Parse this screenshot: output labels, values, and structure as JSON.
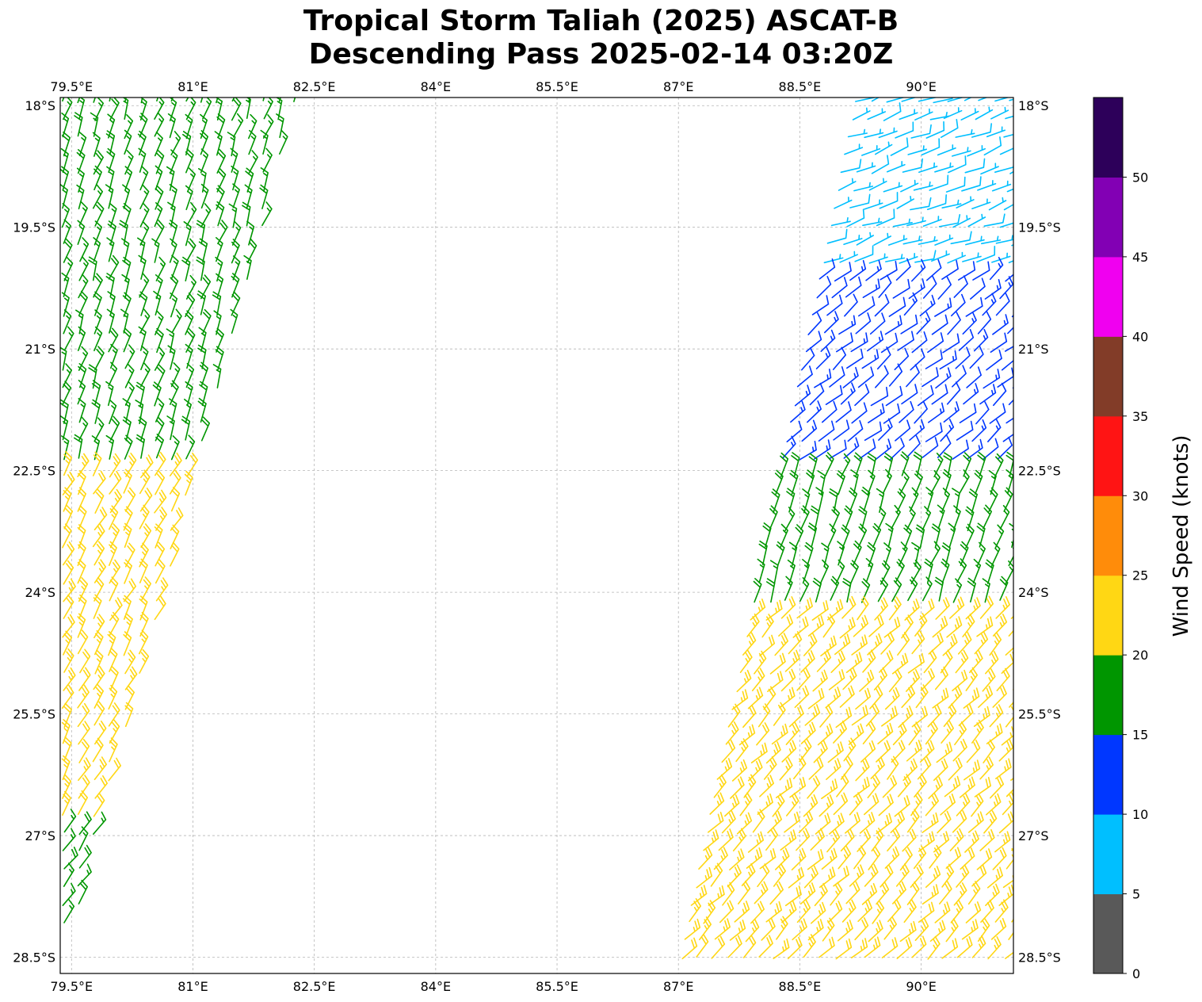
{
  "title_line1": "Tropical Storm Taliah (2025) ASCAT-B",
  "title_line2": "Descending Pass 2025-02-14 03:20Z",
  "map": {
    "lon_range": [
      79.36,
      91.14
    ],
    "lat_range": [
      -28.7,
      -17.9
    ],
    "lon_ticks": [
      {
        "value": 79.5,
        "label": "79.5°E"
      },
      {
        "value": 81.0,
        "label": "81°E"
      },
      {
        "value": 82.5,
        "label": "82.5°E"
      },
      {
        "value": 84.0,
        "label": "84°E"
      },
      {
        "value": 85.5,
        "label": "85.5°E"
      },
      {
        "value": 87.0,
        "label": "87°E"
      },
      {
        "value": 88.5,
        "label": "88.5°E"
      },
      {
        "value": 90.0,
        "label": "90°E"
      }
    ],
    "lat_ticks": [
      {
        "value": -18.0,
        "label": "18°S"
      },
      {
        "value": -19.5,
        "label": "19.5°S"
      },
      {
        "value": -21.0,
        "label": "21°S"
      },
      {
        "value": -22.5,
        "label": "22.5°S"
      },
      {
        "value": -24.0,
        "label": "24°S"
      },
      {
        "value": -25.5,
        "label": "25.5°S"
      },
      {
        "value": -27.0,
        "label": "27°S"
      },
      {
        "value": -28.5,
        "label": "28.5°S"
      }
    ],
    "grid": true,
    "barb_convention": "wind barbs, knots, southern hemisphere"
  },
  "colorbar": {
    "label": "Wind Speed (knots)",
    "ticks": [
      "0",
      "5",
      "10",
      "15",
      "20",
      "25",
      "30",
      "35",
      "40",
      "45",
      "50"
    ],
    "bins": [
      {
        "from": 0,
        "to": 5,
        "color": "#595959"
      },
      {
        "from": 5,
        "to": 10,
        "color": "#00bfff"
      },
      {
        "from": 10,
        "to": 15,
        "color": "#0037ff"
      },
      {
        "from": 15,
        "to": 20,
        "color": "#009600"
      },
      {
        "from": 20,
        "to": 25,
        "color": "#ffd714"
      },
      {
        "from": 25,
        "to": 30,
        "color": "#ff8c0a"
      },
      {
        "from": 30,
        "to": 35,
        "color": "#ff1414"
      },
      {
        "from": 35,
        "to": 40,
        "color": "#823c28"
      },
      {
        "from": 40,
        "to": 45,
        "color": "#f000f0"
      },
      {
        "from": 45,
        "to": 50,
        "color": "#8200b4"
      },
      {
        "from": 50,
        "to": 55,
        "color": "#2d005a"
      }
    ]
  },
  "swaths": [
    {
      "name": "west-swath",
      "lat_range": [
        -28.2,
        -17.95
      ],
      "lon_west_at_lat_min": 79.4,
      "lon_east_at_lat_min": 79.5,
      "lon_west_at_lat_max": 79.4,
      "lon_east_at_lat_max": 82.3,
      "wind_zones": [
        {
          "lat_from": -17.95,
          "lat_to": -22.4,
          "speed_kt": 17,
          "dir_to_deg": 200
        },
        {
          "lat_from": -22.4,
          "lat_to": -26.9,
          "speed_kt": 22,
          "dir_to_deg": 210
        },
        {
          "lat_from": -26.9,
          "lat_to": -28.2,
          "speed_kt": 17,
          "dir_to_deg": 215
        }
      ]
    },
    {
      "name": "east-swath",
      "lat_range": [
        -28.7,
        -17.95
      ],
      "lon_west_at_lat_min": 87.0,
      "lon_east_at_lat_min": 91.14,
      "lon_west_at_lat_max": 89.2,
      "lon_east_at_lat_max": 91.14,
      "wind_zones": [
        {
          "lat_from": -17.95,
          "lat_to": -20.0,
          "speed_kt": 7,
          "dir_to_deg": 250
        },
        {
          "lat_from": -20.0,
          "lat_to": -22.5,
          "speed_kt": 12,
          "dir_to_deg": 230
        },
        {
          "lat_from": -22.5,
          "lat_to": -24.2,
          "speed_kt": 18,
          "dir_to_deg": 200
        },
        {
          "lat_from": -24.2,
          "lat_to": -28.7,
          "speed_kt": 23,
          "dir_to_deg": 225
        }
      ]
    }
  ]
}
